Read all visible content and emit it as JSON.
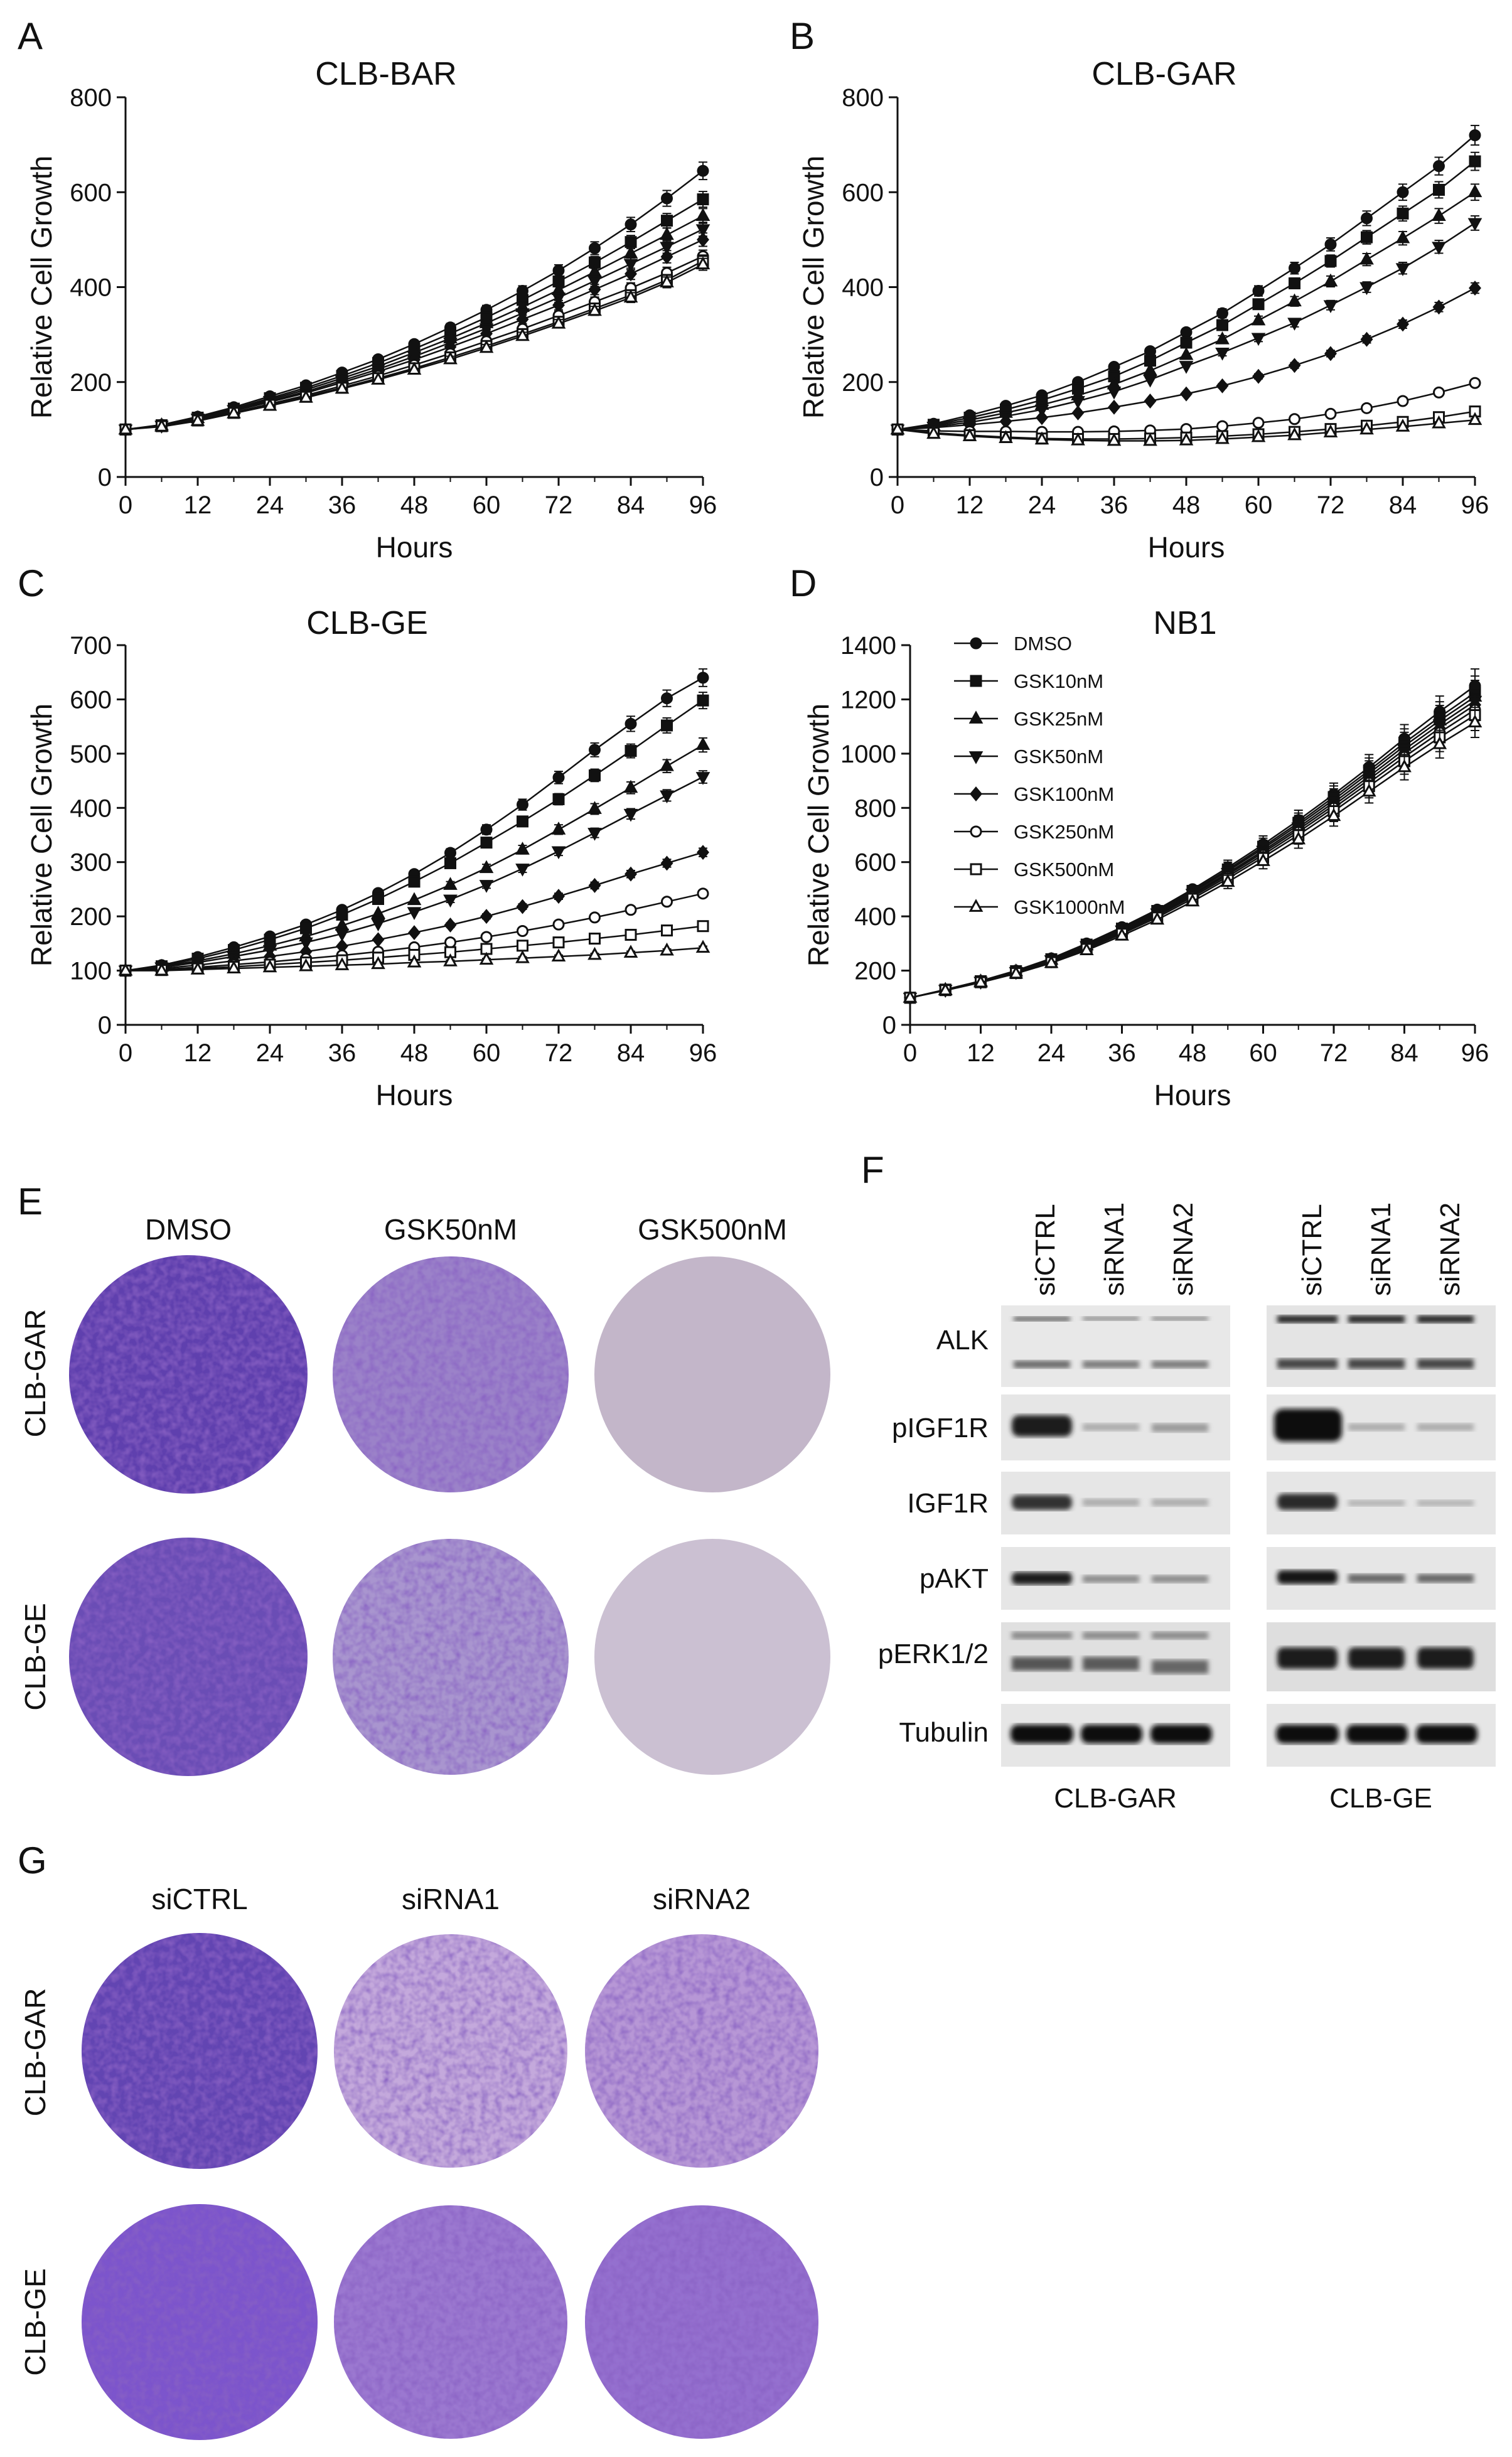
{
  "panels": {
    "A": {
      "letter": "A"
    },
    "B": {
      "letter": "B"
    },
    "C": {
      "letter": "C"
    },
    "D": {
      "letter": "D"
    },
    "E": {
      "letter": "E",
      "columns": [
        "DMSO",
        "GSK50nM",
        "GSK500nM"
      ],
      "rows": [
        "CLB-GAR",
        "CLB-GE"
      ]
    },
    "F": {
      "letter": "F",
      "lanes": [
        "siCTRL",
        "siRNA1",
        "siRNA2"
      ],
      "proteins": [
        "ALK",
        "pIGF1R",
        "IGF1R",
        "pAKT",
        "pERK1/2",
        "Tubulin"
      ],
      "groups": [
        "CLB-GAR",
        "CLB-GE"
      ]
    },
    "G": {
      "letter": "G",
      "columns": [
        "siCTRL",
        "siRNA1",
        "siRNA2"
      ],
      "rows": [
        "CLB-GAR",
        "CLB-GE"
      ]
    }
  },
  "colors": {
    "ink": "#111111",
    "crystal_violet_dark": "#5a3aa8",
    "crystal_violet_mid": "#8a6cc0",
    "crystal_violet_light": "#c9b7e0",
    "plate_empty": "#c8bfcc",
    "blot_band": "#1a1a1a",
    "blot_bg": "#e4e4e4"
  },
  "chart_data": [
    {
      "id": "A",
      "type": "line",
      "title": "CLB-BAR",
      "xlabel": "Hours",
      "ylabel": "Relative Cell Growth",
      "xlim": [
        0,
        96
      ],
      "ylim": [
        0,
        800
      ],
      "xticks": [
        0,
        12,
        24,
        36,
        48,
        60,
        72,
        84,
        96
      ],
      "yticks": [
        0,
        200,
        400,
        600,
        800
      ],
      "x": [
        0,
        6,
        12,
        18,
        24,
        30,
        36,
        42,
        48,
        54,
        60,
        66,
        72,
        78,
        84,
        90,
        96
      ],
      "series": [
        {
          "name": "DMSO",
          "marker": "circle-filled",
          "values": [
            100,
            110,
            127,
            147,
            170,
            193,
            220,
            248,
            280,
            315,
            352,
            392,
            435,
            482,
            532,
            587,
            645
          ]
        },
        {
          "name": "GSK10nM",
          "marker": "square-filled",
          "values": [
            100,
            109,
            125,
            144,
            166,
            188,
            213,
            240,
            270,
            302,
            336,
            373,
            412,
            452,
            495,
            540,
            585
          ]
        },
        {
          "name": "GSK25nM",
          "marker": "triangle-up-filled",
          "values": [
            100,
            109,
            124,
            143,
            163,
            184,
            208,
            233,
            262,
            292,
            324,
            358,
            394,
            432,
            471,
            510,
            550
          ]
        },
        {
          "name": "GSK50nM",
          "marker": "triangle-down-filled",
          "values": [
            100,
            108,
            123,
            141,
            160,
            180,
            203,
            227,
            254,
            283,
            313,
            345,
            378,
            413,
            449,
            485,
            522
          ]
        },
        {
          "name": "GSK100nM",
          "marker": "diamond-filled",
          "values": [
            100,
            108,
            122,
            139,
            158,
            177,
            199,
            222,
            247,
            274,
            302,
            332,
            362,
            395,
            428,
            464,
            500
          ]
        },
        {
          "name": "GSK250nM",
          "marker": "circle-open",
          "values": [
            100,
            107,
            120,
            136,
            154,
            172,
            192,
            213,
            236,
            260,
            286,
            312,
            340,
            369,
            398,
            430,
            465
          ]
        },
        {
          "name": "GSK500nM",
          "marker": "square-open",
          "values": [
            100,
            107,
            119,
            135,
            152,
            169,
            188,
            208,
            229,
            252,
            276,
            301,
            327,
            355,
            383,
            415,
            455
          ]
        },
        {
          "name": "GSK1000nM",
          "marker": "triangle-up-open",
          "values": [
            100,
            106,
            118,
            134,
            150,
            167,
            186,
            205,
            226,
            248,
            272,
            297,
            323,
            350,
            378,
            410,
            448
          ]
        }
      ]
    },
    {
      "id": "B",
      "type": "line",
      "title": "CLB-GAR",
      "xlabel": "Hours",
      "ylabel": "Relative Cell Growth",
      "xlim": [
        0,
        96
      ],
      "ylim": [
        0,
        800
      ],
      "xticks": [
        0,
        12,
        24,
        36,
        48,
        60,
        72,
        84,
        96
      ],
      "yticks": [
        0,
        200,
        400,
        600,
        800
      ],
      "x": [
        0,
        6,
        12,
        18,
        24,
        30,
        36,
        42,
        48,
        54,
        60,
        66,
        72,
        78,
        84,
        90,
        96
      ],
      "series": [
        {
          "name": "DMSO",
          "marker": "circle-filled",
          "values": [
            100,
            112,
            130,
            150,
            172,
            200,
            232,
            265,
            305,
            345,
            392,
            440,
            490,
            545,
            600,
            655,
            720
          ]
        },
        {
          "name": "GSK10nM",
          "marker": "square-filled",
          "values": [
            100,
            110,
            125,
            142,
            162,
            186,
            212,
            245,
            283,
            320,
            364,
            408,
            455,
            505,
            555,
            605,
            665
          ]
        },
        {
          "name": "GSK25nM",
          "marker": "triangle-up-filled",
          "values": [
            100,
            108,
            120,
            135,
            152,
            172,
            195,
            224,
            257,
            290,
            330,
            370,
            412,
            458,
            503,
            550,
            600
          ]
        },
        {
          "name": "GSK50nM",
          "marker": "triangle-down-filled",
          "values": [
            100,
            106,
            115,
            128,
            142,
            160,
            180,
            205,
            234,
            262,
            293,
            325,
            362,
            400,
            440,
            485,
            535
          ]
        },
        {
          "name": "GSK100nM",
          "marker": "diamond-filled",
          "values": [
            100,
            104,
            110,
            117,
            125,
            135,
            147,
            160,
            175,
            192,
            212,
            235,
            260,
            290,
            322,
            358,
            398
          ]
        },
        {
          "name": "GSK250nM",
          "marker": "circle-open",
          "values": [
            100,
            97,
            96,
            96,
            95,
            95,
            96,
            98,
            101,
            107,
            114,
            122,
            133,
            145,
            160,
            178,
            198
          ]
        },
        {
          "name": "GSK500nM",
          "marker": "square-open",
          "values": [
            100,
            93,
            88,
            84,
            81,
            80,
            80,
            81,
            83,
            86,
            90,
            95,
            101,
            108,
            116,
            126,
            138
          ]
        },
        {
          "name": "GSK1000nM",
          "marker": "triangle-up-open",
          "values": [
            100,
            91,
            86,
            82,
            79,
            77,
            76,
            76,
            77,
            80,
            84,
            88,
            94,
            100,
            106,
            113,
            120
          ]
        }
      ]
    },
    {
      "id": "C",
      "type": "line",
      "title": "CLB-GE",
      "xlabel": "Hours",
      "ylabel": "Relative Cell Growth",
      "xlim": [
        0,
        96
      ],
      "ylim": [
        0,
        700
      ],
      "xticks": [
        0,
        12,
        24,
        36,
        48,
        60,
        72,
        84,
        96
      ],
      "yticks": [
        0,
        100,
        200,
        300,
        400,
        500,
        600,
        700
      ],
      "x": [
        0,
        6,
        12,
        18,
        24,
        30,
        36,
        42,
        48,
        54,
        60,
        66,
        72,
        78,
        84,
        90,
        96
      ],
      "series": [
        {
          "name": "DMSO",
          "marker": "circle-filled",
          "values": [
            100,
            110,
            125,
            143,
            163,
            185,
            212,
            243,
            278,
            317,
            360,
            406,
            456,
            507,
            555,
            602,
            640
          ]
        },
        {
          "name": "GSK10nM",
          "marker": "square-filled",
          "values": [
            100,
            108,
            122,
            138,
            157,
            178,
            203,
            232,
            264,
            298,
            336,
            375,
            416,
            460,
            505,
            552,
            598
          ]
        },
        {
          "name": "GSK25nM",
          "marker": "triangle-up-filled",
          "values": [
            100,
            107,
            118,
            131,
            146,
            163,
            183,
            205,
            230,
            258,
            289,
            323,
            360,
            398,
            437,
            477,
            516
          ]
        },
        {
          "name": "GSK50nM",
          "marker": "triangle-down-filled",
          "values": [
            100,
            106,
            115,
            126,
            138,
            152,
            168,
            187,
            208,
            231,
            258,
            288,
            320,
            354,
            389,
            423,
            457
          ]
        },
        {
          "name": "GSK100nM",
          "marker": "diamond-filled",
          "values": [
            100,
            104,
            110,
            118,
            126,
            135,
            145,
            157,
            170,
            184,
            200,
            218,
            237,
            257,
            278,
            298,
            318
          ]
        },
        {
          "name": "GSK250nM",
          "marker": "circle-open",
          "values": [
            100,
            102,
            106,
            111,
            116,
            122,
            128,
            135,
            143,
            152,
            162,
            173,
            185,
            198,
            212,
            227,
            242
          ]
        },
        {
          "name": "GSK500nM",
          "marker": "square-open",
          "values": [
            100,
            101,
            104,
            107,
            111,
            115,
            119,
            124,
            129,
            134,
            140,
            146,
            152,
            159,
            166,
            174,
            182
          ]
        },
        {
          "name": "GSK1000nM",
          "marker": "triangle-up-open",
          "values": [
            100,
            100,
            102,
            104,
            106,
            108,
            110,
            112,
            115,
            117,
            120,
            123,
            126,
            129,
            133,
            137,
            142
          ]
        }
      ]
    },
    {
      "id": "D",
      "type": "line",
      "title": "NB1",
      "xlabel": "Hours",
      "ylabel": "Relative Cell Growth",
      "xlim": [
        0,
        96
      ],
      "ylim": [
        0,
        1400
      ],
      "xticks": [
        0,
        12,
        24,
        36,
        48,
        60,
        72,
        84,
        96
      ],
      "yticks": [
        0,
        200,
        400,
        600,
        800,
        1000,
        1200,
        1400
      ],
      "legend": "top-left",
      "x": [
        0,
        6,
        12,
        18,
        24,
        30,
        36,
        42,
        48,
        54,
        60,
        66,
        72,
        78,
        84,
        90,
        96
      ],
      "series": [
        {
          "name": "DMSO",
          "marker": "circle-filled",
          "values": [
            100,
            130,
            162,
            200,
            245,
            300,
            360,
            425,
            500,
            580,
            665,
            755,
            850,
            950,
            1055,
            1155,
            1250
          ]
        },
        {
          "name": "GSK10nM",
          "marker": "square-filled",
          "values": [
            100,
            130,
            161,
            198,
            242,
            296,
            355,
            420,
            494,
            573,
            657,
            745,
            840,
            938,
            1040,
            1135,
            1225
          ]
        },
        {
          "name": "GSK25nM",
          "marker": "triangle-up-filled",
          "values": [
            100,
            129,
            160,
            197,
            240,
            293,
            352,
            416,
            489,
            567,
            650,
            737,
            830,
            928,
            1028,
            1122,
            1210
          ]
        },
        {
          "name": "GSK50nM",
          "marker": "triangle-down-filled",
          "values": [
            100,
            129,
            159,
            195,
            238,
            290,
            348,
            411,
            483,
            560,
            642,
            728,
            820,
            916,
            1015,
            1108,
            1195
          ]
        },
        {
          "name": "GSK100nM",
          "marker": "diamond-filled",
          "values": [
            100,
            129,
            159,
            194,
            236,
            287,
            345,
            407,
            478,
            554,
            635,
            720,
            810,
            905,
            1002,
            1094,
            1180
          ]
        },
        {
          "name": "GSK250nM",
          "marker": "circle-open",
          "values": [
            100,
            128,
            158,
            193,
            234,
            284,
            341,
            402,
            472,
            547,
            627,
            711,
            800,
            893,
            988,
            1078,
            1162
          ]
        },
        {
          "name": "GSK500nM",
          "marker": "square-open",
          "values": [
            100,
            128,
            157,
            191,
            231,
            280,
            336,
            396,
            465,
            539,
            618,
            700,
            788,
            880,
            972,
            1060,
            1142
          ]
        },
        {
          "name": "GSK1000nM",
          "marker": "triangle-up-open",
          "values": [
            100,
            127,
            156,
            189,
            228,
            275,
            329,
            388,
            455,
            527,
            604,
            684,
            770,
            860,
            950,
            1035,
            1115
          ]
        }
      ]
    }
  ]
}
